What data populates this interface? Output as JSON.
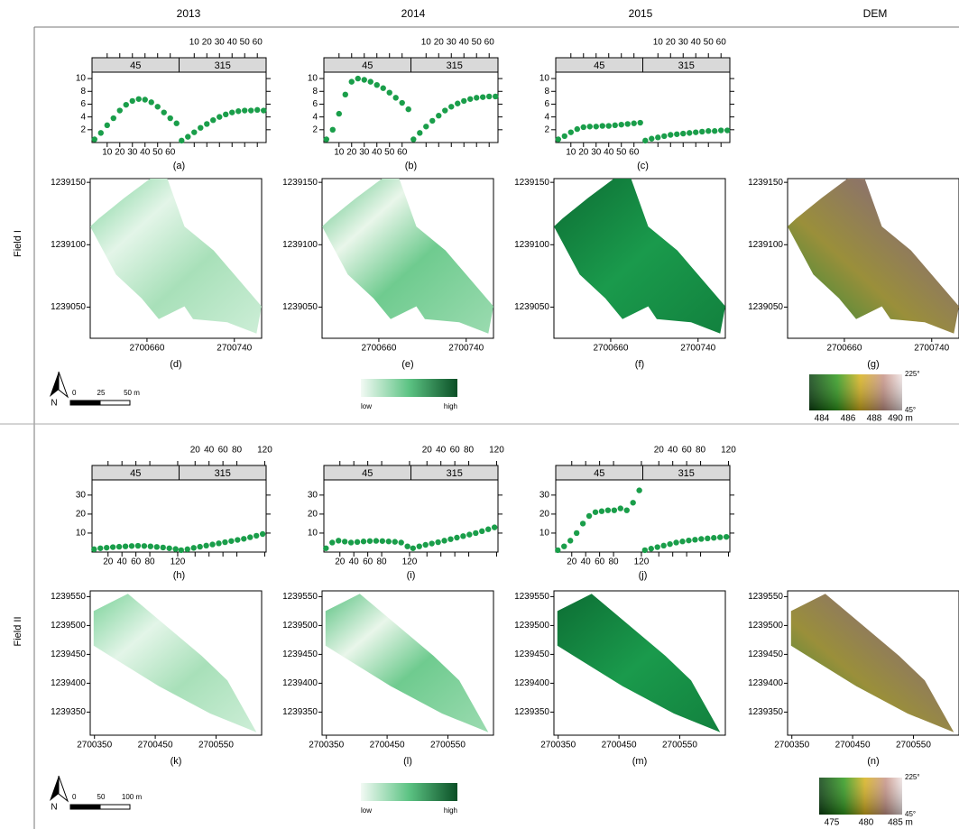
{
  "columns": [
    "2013",
    "2014",
    "2015",
    "DEM"
  ],
  "rows": [
    "Field I",
    "Field II"
  ],
  "chart_data": [
    {
      "type": "scatter",
      "label": "(a)",
      "x": [
        0,
        5,
        10,
        15,
        20,
        25,
        30,
        35,
        40,
        45,
        50,
        55,
        60,
        65
      ],
      "xlim": [
        -2,
        67
      ],
      "xticks": [
        10,
        20,
        30,
        40,
        50,
        60
      ],
      "ylim": [
        0,
        11
      ],
      "yticks": [
        2,
        4,
        6,
        8,
        10
      ],
      "color": "#1a9e4a",
      "series": [
        {
          "name": "45",
          "values": [
            0.5,
            1.5,
            2.7,
            3.8,
            5,
            5.9,
            6.5,
            6.8,
            6.7,
            6.3,
            5.6,
            4.7,
            3.8,
            3
          ]
        },
        {
          "name": "315",
          "values": [
            0.3,
            0.9,
            1.6,
            2.3,
            2.9,
            3.5,
            4,
            4.4,
            4.7,
            4.9,
            5,
            5,
            5.1,
            5
          ]
        }
      ]
    },
    {
      "type": "scatter",
      "label": "(b)",
      "x": [
        0,
        5,
        10,
        15,
        20,
        25,
        30,
        35,
        40,
        45,
        50,
        55,
        60,
        65
      ],
      "xlim": [
        -2,
        67
      ],
      "xticks": [
        10,
        20,
        30,
        40,
        50,
        60
      ],
      "ylim": [
        0,
        11
      ],
      "yticks": [
        2,
        4,
        6,
        8,
        10
      ],
      "color": "#1a9e4a",
      "series": [
        {
          "name": "45",
          "values": [
            0.5,
            2,
            4.5,
            7.5,
            9.5,
            10,
            9.8,
            9.5,
            9,
            8.5,
            7.8,
            7,
            6.2,
            5.2
          ]
        },
        {
          "name": "315",
          "values": [
            0.5,
            1.5,
            2.5,
            3.4,
            4.2,
            5,
            5.6,
            6.1,
            6.5,
            6.8,
            7,
            7.1,
            7.2,
            7.2
          ]
        }
      ]
    },
    {
      "type": "scatter",
      "label": "(c)",
      "x": [
        0,
        5,
        10,
        15,
        20,
        25,
        30,
        35,
        40,
        45,
        50,
        55,
        60,
        65
      ],
      "xlim": [
        -2,
        67
      ],
      "xticks": [
        10,
        20,
        30,
        40,
        50,
        60
      ],
      "ylim": [
        0,
        11
      ],
      "yticks": [
        2,
        4,
        6,
        8,
        10
      ],
      "color": "#1a9e4a",
      "series": [
        {
          "name": "45",
          "values": [
            0.5,
            1,
            1.6,
            2.1,
            2.4,
            2.5,
            2.5,
            2.6,
            2.6,
            2.7,
            2.8,
            2.9,
            3,
            3.1
          ]
        },
        {
          "name": "315",
          "values": [
            0.3,
            0.6,
            0.8,
            1,
            1.2,
            1.3,
            1.4,
            1.5,
            1.6,
            1.7,
            1.8,
            1.8,
            1.9,
            1.9
          ]
        }
      ]
    },
    {
      "type": "scatter",
      "label": "(h)",
      "x": [
        0,
        9,
        18,
        27,
        36,
        45,
        54,
        63,
        72,
        81,
        90,
        99,
        108,
        117
      ],
      "xlim": [
        -3,
        122
      ],
      "xticks": [
        20,
        40,
        60,
        80,
        120
      ],
      "ylim": [
        0,
        38
      ],
      "yticks": [
        10,
        20,
        30
      ],
      "color": "#1a9e4a",
      "series": [
        {
          "name": "45",
          "values": [
            1.5,
            2,
            2.3,
            2.6,
            2.8,
            3,
            3.2,
            3.3,
            3.2,
            3,
            2.7,
            2.4,
            2,
            1.6
          ]
        },
        {
          "name": "315",
          "values": [
            1,
            1.5,
            2.2,
            2.8,
            3.4,
            4,
            4.6,
            5.2,
            5.8,
            6.4,
            7,
            7.8,
            8.6,
            9.5
          ]
        }
      ]
    },
    {
      "type": "scatter",
      "label": "(i)",
      "x": [
        0,
        9,
        18,
        27,
        36,
        45,
        54,
        63,
        72,
        81,
        90,
        99,
        108,
        117
      ],
      "xlim": [
        -3,
        122
      ],
      "xticks": [
        20,
        40,
        60,
        80,
        120
      ],
      "ylim": [
        0,
        38
      ],
      "yticks": [
        10,
        20,
        30
      ],
      "color": "#1a9e4a",
      "series": [
        {
          "name": "45",
          "values": [
            2,
            5,
            6,
            5.5,
            5,
            5.3,
            5.6,
            5.8,
            5.9,
            5.8,
            5.6,
            5.4,
            5,
            3
          ]
        },
        {
          "name": "315",
          "values": [
            2,
            3,
            3.8,
            4.5,
            5.2,
            6,
            6.8,
            7.6,
            8.4,
            9.2,
            10,
            11,
            12,
            13
          ]
        }
      ]
    },
    {
      "type": "scatter",
      "label": "(j)",
      "x": [
        0,
        9,
        18,
        27,
        36,
        45,
        54,
        63,
        72,
        81,
        90,
        99,
        108,
        117
      ],
      "xlim": [
        -3,
        122
      ],
      "xticks": [
        20,
        40,
        60,
        80,
        120
      ],
      "ylim": [
        0,
        38
      ],
      "yticks": [
        10,
        20,
        30
      ],
      "color": "#1a9e4a",
      "series": [
        {
          "name": "45",
          "values": [
            1,
            3,
            6,
            10,
            15,
            19,
            21,
            21.5,
            22,
            22,
            23,
            22,
            26,
            32.5
          ]
        },
        {
          "name": "315",
          "values": [
            1,
            1.8,
            2.6,
            3.4,
            4.2,
            5,
            5.6,
            6.1,
            6.5,
            6.9,
            7.2,
            7.5,
            7.8,
            8
          ]
        }
      ]
    }
  ],
  "maps": [
    {
      "label": "(d)",
      "xlim": [
        2700608,
        2700765
      ],
      "ylim": [
        1239025,
        1239153
      ],
      "xticks": [
        2700660,
        2700740
      ],
      "yticks": [
        1239050,
        1239100,
        1239150
      ]
    },
    {
      "label": "(e)",
      "xlim": [
        2700608,
        2700765
      ],
      "ylim": [
        1239025,
        1239153
      ],
      "xticks": [
        2700660,
        2700740
      ],
      "yticks": [
        1239050,
        1239100,
        1239150
      ]
    },
    {
      "label": "(f)",
      "xlim": [
        2700608,
        2700765
      ],
      "ylim": [
        1239025,
        1239153
      ],
      "xticks": [
        2700660,
        2700740
      ],
      "yticks": [
        1239050,
        1239100,
        1239150
      ]
    },
    {
      "label": "(g)",
      "xlim": [
        2700608,
        2700765
      ],
      "ylim": [
        1239025,
        1239153
      ],
      "xticks": [
        2700660,
        2700740
      ],
      "yticks": [
        1239050,
        1239100,
        1239150
      ]
    },
    {
      "label": "(k)",
      "xlim": [
        2700343,
        2700625
      ],
      "ylim": [
        1239310,
        1239560
      ],
      "xticks": [
        2700350,
        2700450,
        2700550
      ],
      "yticks": [
        1239350,
        1239400,
        1239450,
        1239500,
        1239550
      ]
    },
    {
      "label": "(l)",
      "xlim": [
        2700343,
        2700625
      ],
      "ylim": [
        1239310,
        1239560
      ],
      "xticks": [
        2700350,
        2700450,
        2700550
      ],
      "yticks": [
        1239350,
        1239400,
        1239450,
        1239500,
        1239550
      ]
    },
    {
      "label": "(m)",
      "xlim": [
        2700343,
        2700625
      ],
      "ylim": [
        1239310,
        1239560
      ],
      "xticks": [
        2700350,
        2700450,
        2700550
      ],
      "yticks": [
        1239350,
        1239400,
        1239450,
        1239500,
        1239550
      ]
    },
    {
      "label": "(n)",
      "xlim": [
        2700343,
        2700625
      ],
      "ylim": [
        1239310,
        1239560
      ],
      "xticks": [
        2700350,
        2700450,
        2700550
      ],
      "yticks": [
        1239350,
        1239400,
        1239450,
        1239500,
        1239550
      ]
    }
  ],
  "colorbars": [
    {
      "low": "low",
      "high": "high"
    },
    {
      "low": "low",
      "high": "high"
    }
  ],
  "dem_legends": [
    {
      "top": "225°",
      "bottom": "45°",
      "ticks": [
        "484",
        "486",
        "488",
        "490 m"
      ]
    },
    {
      "top": "225°",
      "bottom": "45°",
      "ticks": [
        "475",
        "480",
        "485 m"
      ]
    }
  ],
  "scale_bars": [
    {
      "north": "N",
      "labels": [
        "0",
        "25",
        "50 m"
      ]
    },
    {
      "north": "N",
      "labels": [
        "0",
        "50",
        "100 m"
      ]
    }
  ]
}
